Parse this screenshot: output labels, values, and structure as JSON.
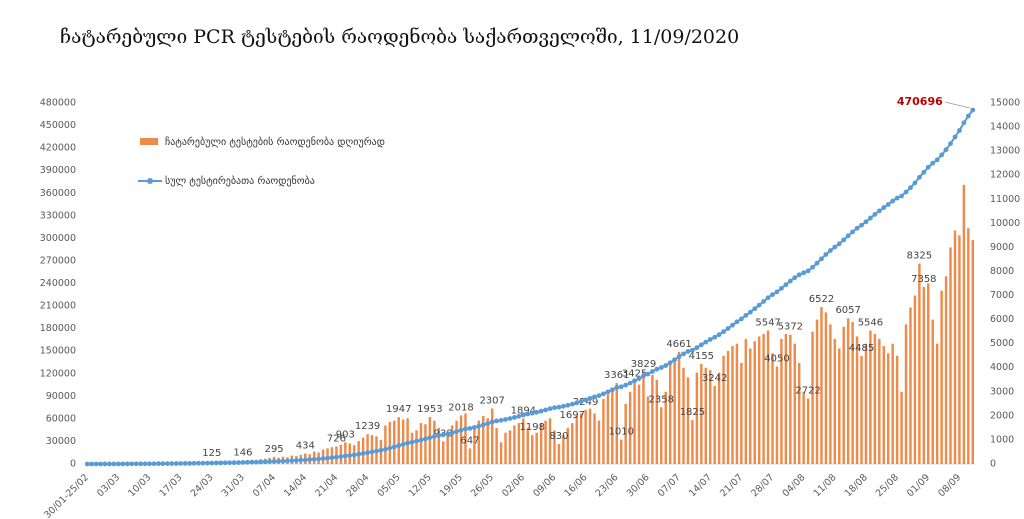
{
  "chart_data": {
    "type": "combo",
    "title": "ჩატარებული PCR ტესტების რაოდენობა საქართველოში, 11/09/2020",
    "categories": [
      "30/01-25/02",
      null,
      null,
      null,
      null,
      null,
      null,
      "03/03",
      null,
      null,
      null,
      null,
      null,
      null,
      "10/03",
      null,
      null,
      null,
      null,
      null,
      null,
      "17/03",
      null,
      null,
      null,
      null,
      null,
      null,
      "24/03",
      null,
      null,
      null,
      null,
      null,
      null,
      "31/03",
      null,
      null,
      null,
      null,
      null,
      null,
      "07/04",
      null,
      null,
      null,
      null,
      null,
      null,
      "14/04",
      null,
      null,
      null,
      null,
      null,
      null,
      "21/04",
      null,
      null,
      null,
      null,
      null,
      null,
      "28/04",
      null,
      null,
      null,
      null,
      null,
      null,
      "05/05",
      null,
      null,
      null,
      null,
      null,
      null,
      "12/05",
      null,
      null,
      null,
      null,
      null,
      null,
      "19/05",
      null,
      null,
      null,
      null,
      null,
      null,
      "26/05",
      null,
      null,
      null,
      null,
      null,
      null,
      "02/06",
      null,
      null,
      null,
      null,
      null,
      null,
      "09/06",
      null,
      null,
      null,
      null,
      null,
      null,
      "16/06",
      null,
      null,
      null,
      null,
      null,
      null,
      "23/06",
      null,
      null,
      null,
      null,
      null,
      null,
      "30/06",
      null,
      null,
      null,
      null,
      null,
      null,
      "07/07",
      null,
      null,
      null,
      null,
      null,
      null,
      "14/07",
      null,
      null,
      null,
      null,
      null,
      null,
      "21/07",
      null,
      null,
      null,
      null,
      null,
      null,
      "28/07",
      null,
      null,
      null,
      null,
      null,
      null,
      "04/08",
      null,
      null,
      null,
      null,
      null,
      null,
      "11/08",
      null,
      null,
      null,
      null,
      null,
      null,
      "18/08",
      null,
      null,
      null,
      null,
      null,
      null,
      "25/08",
      null,
      null,
      null,
      null,
      null,
      null,
      "01/09",
      null,
      null,
      null,
      null,
      null,
      null,
      "08/09",
      null,
      null,
      null
    ],
    "series": [
      {
        "name": "ჩატარებული ტესტების რაოდენობა დღიურად",
        "type": "bar",
        "axis": "y2",
        "color": "#ee8a4a",
        "values": [
          0,
          10,
          15,
          20,
          12,
          18,
          25,
          30,
          20,
          35,
          28,
          40,
          30,
          45,
          50,
          40,
          55,
          60,
          48,
          65,
          70,
          58,
          80,
          75,
          90,
          100,
          85,
          110,
          125,
          95,
          120,
          105,
          130,
          115,
          140,
          146,
          160,
          180,
          150,
          200,
          220,
          250,
          295,
          260,
          300,
          280,
          350,
          330,
          380,
          434,
          400,
          520,
          480,
          600,
          650,
          700,
          726,
          800,
          903,
          850,
          780,
          950,
          1100,
          1239,
          1200,
          1150,
          1000,
          1600,
          1750,
          1800,
          1947,
          1850,
          1900,
          1300,
          1400,
          1700,
          1650,
          1953,
          1800,
          1500,
          938,
          1200,
          1600,
          1800,
          2018,
          2100,
          647,
          1500,
          1800,
          2000,
          1900,
          2307,
          1500,
          900,
          1300,
          1400,
          1600,
          1700,
          1894,
          1500,
          1198,
          1300,
          1700,
          1800,
          1900,
          1400,
          830,
          1200,
          1500,
          1697,
          2000,
          2100,
          2249,
          2300,
          2100,
          1800,
          2700,
          2900,
          3100,
          3361,
          1010,
          2500,
          3000,
          3425,
          3300,
          3829,
          2800,
          3700,
          3500,
          2358,
          3000,
          4200,
          4400,
          4661,
          4000,
          3600,
          1825,
          3800,
          4155,
          4000,
          3900,
          3242,
          3800,
          4500,
          4700,
          4900,
          5000,
          4200,
          5200,
          4800,
          5100,
          5300,
          5400,
          5547,
          4600,
          4050,
          5200,
          5400,
          5372,
          5000,
          4200,
          3000,
          2722,
          5500,
          6000,
          6522,
          6300,
          5800,
          5200,
          4800,
          5700,
          6057,
          5900,
          5300,
          4485,
          5000,
          5546,
          5400,
          5200,
          4900,
          4600,
          5000,
          4500,
          3000,
          5800,
          6500,
          7000,
          8325,
          7358,
          7500,
          6000,
          5000,
          7200,
          7800,
          9000,
          9700,
          9500,
          11600,
          9800,
          9300
        ],
        "value_labels": [
          null,
          null,
          null,
          null,
          null,
          null,
          null,
          null,
          null,
          null,
          null,
          null,
          null,
          null,
          null,
          null,
          null,
          null,
          null,
          null,
          null,
          null,
          null,
          null,
          null,
          null,
          null,
          null,
          "125",
          null,
          null,
          null,
          null,
          null,
          null,
          "146",
          null,
          null,
          null,
          null,
          null,
          null,
          "295",
          null,
          null,
          null,
          null,
          null,
          null,
          "434",
          null,
          null,
          null,
          null,
          null,
          null,
          "726",
          null,
          "903",
          null,
          null,
          null,
          null,
          "1239",
          null,
          null,
          null,
          null,
          null,
          null,
          "1947",
          null,
          null,
          null,
          null,
          null,
          null,
          "1953",
          null,
          null,
          "938",
          null,
          null,
          null,
          "2018",
          null,
          "647",
          null,
          null,
          null,
          null,
          "2307",
          null,
          null,
          null,
          null,
          null,
          null,
          "1894",
          null,
          "1198",
          null,
          null,
          null,
          null,
          null,
          "830",
          null,
          null,
          "1697",
          null,
          null,
          "2249",
          null,
          null,
          null,
          null,
          null,
          null,
          "3361",
          "1010",
          null,
          null,
          "3425",
          null,
          "3829",
          null,
          null,
          null,
          "2358",
          null,
          null,
          null,
          "4661",
          null,
          null,
          "1825",
          null,
          "4155",
          null,
          null,
          "3242",
          null,
          null,
          null,
          null,
          null,
          null,
          null,
          null,
          null,
          null,
          null,
          "5547",
          null,
          "4050",
          null,
          null,
          "5372",
          null,
          null,
          null,
          "2722",
          null,
          null,
          "6522",
          null,
          null,
          null,
          null,
          null,
          "6057",
          null,
          null,
          "4485",
          null,
          "5546",
          null,
          null,
          null,
          null,
          null,
          null,
          null,
          null,
          null,
          null,
          "8325",
          "7358",
          null,
          null,
          null,
          null,
          null,
          null,
          null,
          null,
          null,
          null,
          null
        ]
      },
      {
        "name": "სულ ტესტირებათა რაოდენობა",
        "type": "line",
        "axis": "y",
        "color": "#5b9bd5",
        "values": [
          0,
          9,
          23,
          41,
          51,
          68,
          90,
          117,
          135,
          167,
          192,
          228,
          255,
          295,
          340,
          376,
          426,
          480,
          523,
          581,
          644,
          697,
          769,
          836,
          917,
          1007,
          1084,
          1183,
          1295,
          1381,
          1489,
          1583,
          1700,
          1804,
          1930,
          2061,
          2205,
          2367,
          2502,
          2682,
          2880,
          3105,
          3371,
          3605,
          3875,
          4127,
          4442,
          4739,
          5081,
          5471,
          5831,
          6299,
          6731,
          7271,
          7856,
          8486,
          9140,
          9860,
          10672,
          11437,
          12139,
          12994,
          13984,
          15099,
          16179,
          17214,
          18114,
          19554,
          21129,
          22749,
          24502,
          26167,
          27877,
          29047,
          30307,
          31837,
          33322,
          35079,
          36699,
          38049,
          38894,
          39974,
          41414,
          43034,
          44850,
          46740,
          47322,
          48672,
          50292,
          52092,
          53802,
          55878,
          57228,
          58038,
          59208,
          60468,
          61908,
          63438,
          65143,
          66493,
          67571,
          68741,
          70271,
          71891,
          73601,
          74861,
          75608,
          76688,
          78038,
          79565,
          81365,
          83255,
          85280,
          87350,
          89240,
          90860,
          93290,
          95900,
          98690,
          101714,
          102623,
          104873,
          107573,
          110656,
          113626,
          117072,
          119592,
          122922,
          126072,
          128194,
          130894,
          134674,
          138634,
          142829,
          146429,
          149669,
          151312,
          154732,
          158471,
          162071,
          165581,
          168499,
          171919,
          175969,
          180199,
          184609,
          189109,
          192889,
          197569,
          201889,
          206479,
          211249,
          216109,
          221101,
          225241,
          228886,
          233566,
          238426,
          243261,
          247761,
          251541,
          254241,
          256691,
          261641,
          267041,
          272911,
          278581,
          283801,
          288481,
          292801,
          297931,
          303382,
          308692,
          313462,
          317498,
          321998,
          326990,
          331850,
          336530,
          340940,
          345080,
          349580,
          353630,
          356330,
          361550,
          367400,
          373700,
          381192,
          387815,
          394565,
          399965,
          404465,
          410945,
          417965,
          426065,
          434795,
          443345,
          453785,
          462605,
          470696
        ],
        "value_labels": [
          null,
          null,
          null,
          null,
          null,
          null,
          null,
          null,
          null,
          null,
          null,
          null,
          null,
          null,
          null,
          null,
          null,
          null,
          null,
          null,
          null,
          null,
          null,
          null,
          null,
          null,
          null,
          null,
          null,
          null,
          null,
          null,
          null,
          null,
          null,
          null,
          null,
          null,
          null,
          null,
          null,
          null,
          null,
          null,
          null,
          null,
          null,
          null,
          null,
          null,
          null,
          null,
          null,
          null,
          null,
          null,
          null,
          null,
          null,
          null,
          null,
          null,
          null,
          null,
          null,
          null,
          null,
          null,
          null,
          null,
          null,
          null,
          null,
          null,
          null,
          null,
          null,
          null,
          null,
          null,
          null,
          null,
          null,
          null,
          null,
          null,
          null,
          null,
          null,
          null,
          null,
          null,
          null,
          null,
          null,
          null,
          null,
          null,
          null,
          null,
          null,
          null,
          null,
          null,
          null,
          null,
          null,
          null,
          null,
          null,
          null,
          null,
          null,
          null,
          null,
          null,
          null,
          null,
          null,
          null,
          null,
          null,
          null,
          null,
          null,
          null,
          null,
          null,
          null,
          null,
          null,
          null,
          null,
          null,
          null,
          null,
          null,
          null,
          null,
          null,
          null,
          null,
          null,
          null,
          null,
          null,
          null,
          null,
          null,
          null,
          null,
          null,
          null,
          null,
          null,
          null,
          null,
          null,
          null,
          null,
          null,
          null,
          null,
          null,
          null,
          null,
          null,
          null,
          null,
          null,
          null,
          null,
          null,
          null,
          null,
          null,
          null,
          null,
          null,
          null,
          null,
          null,
          null,
          null,
          null,
          null,
          null,
          null,
          null,
          null,
          null,
          null,
          null,
          null,
          null,
          null,
          null,
          null,
          null,
          "470696"
        ]
      }
    ],
    "ylim": [
      0,
      480000
    ],
    "yticks": [
      0,
      30000,
      60000,
      90000,
      120000,
      150000,
      180000,
      210000,
      240000,
      270000,
      300000,
      330000,
      360000,
      390000,
      420000,
      450000,
      480000
    ],
    "y2lim": [
      0,
      15000
    ],
    "y2ticks": [
      0,
      1000,
      2000,
      3000,
      4000,
      5000,
      6000,
      7000,
      8000,
      9000,
      10000,
      11000,
      12000,
      13000,
      14000,
      15000
    ],
    "grid": false
  }
}
